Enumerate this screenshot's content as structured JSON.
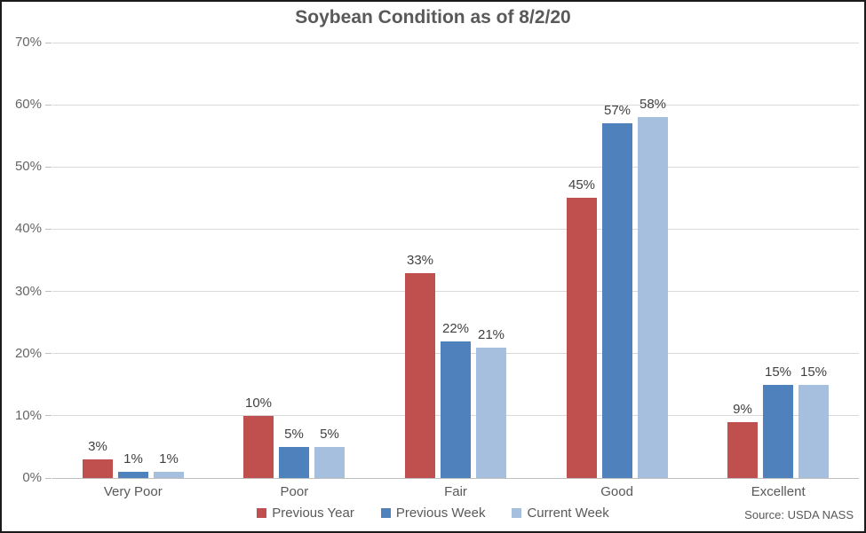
{
  "title": "Soybean Condition as of 8/2/20",
  "source_note": "Source: USDA NASS",
  "colors": {
    "previous_year": "#c0504d",
    "previous_week": "#4f81bd",
    "current_week": "#a7bfde",
    "gridline": "#d9d9d9",
    "axis_line": "#bfbfbf",
    "title_text": "#595959",
    "label_text": "#404040"
  },
  "chart_data": {
    "type": "bar",
    "title": "Soybean Condition as of 8/2/20",
    "categories": [
      "Very Poor",
      "Poor",
      "Fair",
      "Good",
      "Excellent"
    ],
    "series": [
      {
        "name": "Previous Year",
        "color": "#c0504d",
        "values": [
          3,
          10,
          33,
          45,
          9
        ]
      },
      {
        "name": "Previous Week",
        "color": "#4f81bd",
        "values": [
          1,
          5,
          22,
          57,
          15
        ]
      },
      {
        "name": "Current Week",
        "color": "#a7bfde",
        "values": [
          1,
          5,
          21,
          58,
          15
        ]
      }
    ],
    "xlabel": "",
    "ylabel": "",
    "ylim": [
      0,
      70
    ],
    "ytick_step": 10,
    "ytick_format": "percent",
    "grid": true,
    "data_labels": true,
    "data_label_format": "percent",
    "legend_position": "bottom"
  }
}
